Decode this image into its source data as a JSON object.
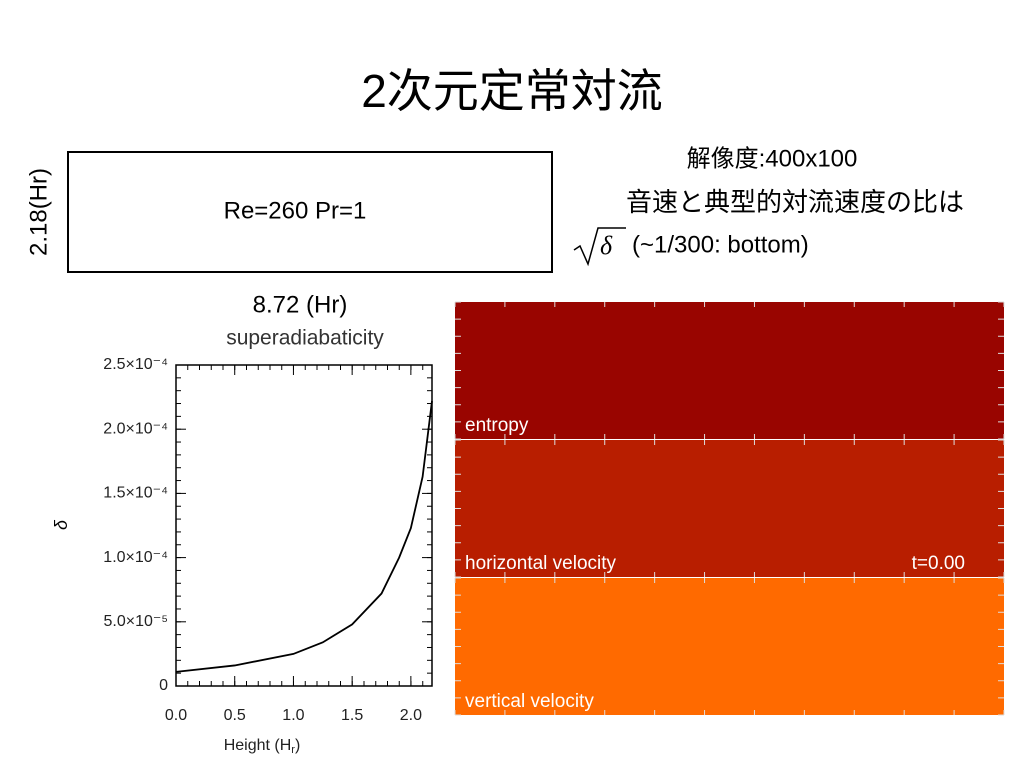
{
  "title": "2次元定常対流",
  "box": {
    "label": "Re=260 Pr=1",
    "height_label": "2.18(Hr)",
    "width_label": "8.72 (Hr)"
  },
  "notes": {
    "resolution": "解像度:400x100",
    "ratio": "音速と典型的対流速度の比は",
    "radicand": "δ",
    "ratio_value": "(~1/300: bottom)"
  },
  "chart_data": {
    "type": "line",
    "title": "superadiabaticity",
    "x_label": [
      "Height (H",
      "r",
      ")"
    ],
    "y_label": "δ",
    "x": [
      0,
      0.5,
      1.0,
      1.25,
      1.5,
      1.75,
      1.9,
      2.0,
      2.1,
      2.18
    ],
    "series": [
      {
        "name": "δ",
        "color": "#000000",
        "values": [
          1.1e-05,
          1.6e-05,
          2.5e-05,
          3.4e-05,
          4.8e-05,
          7.2e-05,
          0.0001,
          0.000123,
          0.000163,
          0.000222
        ]
      }
    ],
    "xlim": [
      0,
      2.18
    ],
    "ylim": [
      0,
      0.00025
    ],
    "xticks": [
      {
        "value": 0,
        "label": "0.0"
      },
      0.5,
      {
        "value": 1,
        "label": "1.0"
      },
      1.5,
      {
        "value": 2,
        "label": "2.0"
      }
    ],
    "yticks": [
      0,
      {
        "value": 5e-05,
        "label": "5.0×10⁻⁵"
      },
      {
        "value": 0.0001,
        "label": "1.0×10⁻⁴"
      },
      {
        "value": 0.00015,
        "label": "1.5×10⁻⁴"
      },
      {
        "value": 0.0002,
        "label": "2.0×10⁻⁴"
      },
      {
        "value": 0.00025,
        "label": "2.5×10⁻⁴"
      }
    ]
  },
  "panels": [
    {
      "label": "entropy",
      "color": "#990500"
    },
    {
      "label": "horizontal velocity",
      "color": "#b81e00"
    },
    {
      "label": "vertical velocity",
      "color": "#ff6a00"
    }
  ],
  "time_label": "t=0.00"
}
